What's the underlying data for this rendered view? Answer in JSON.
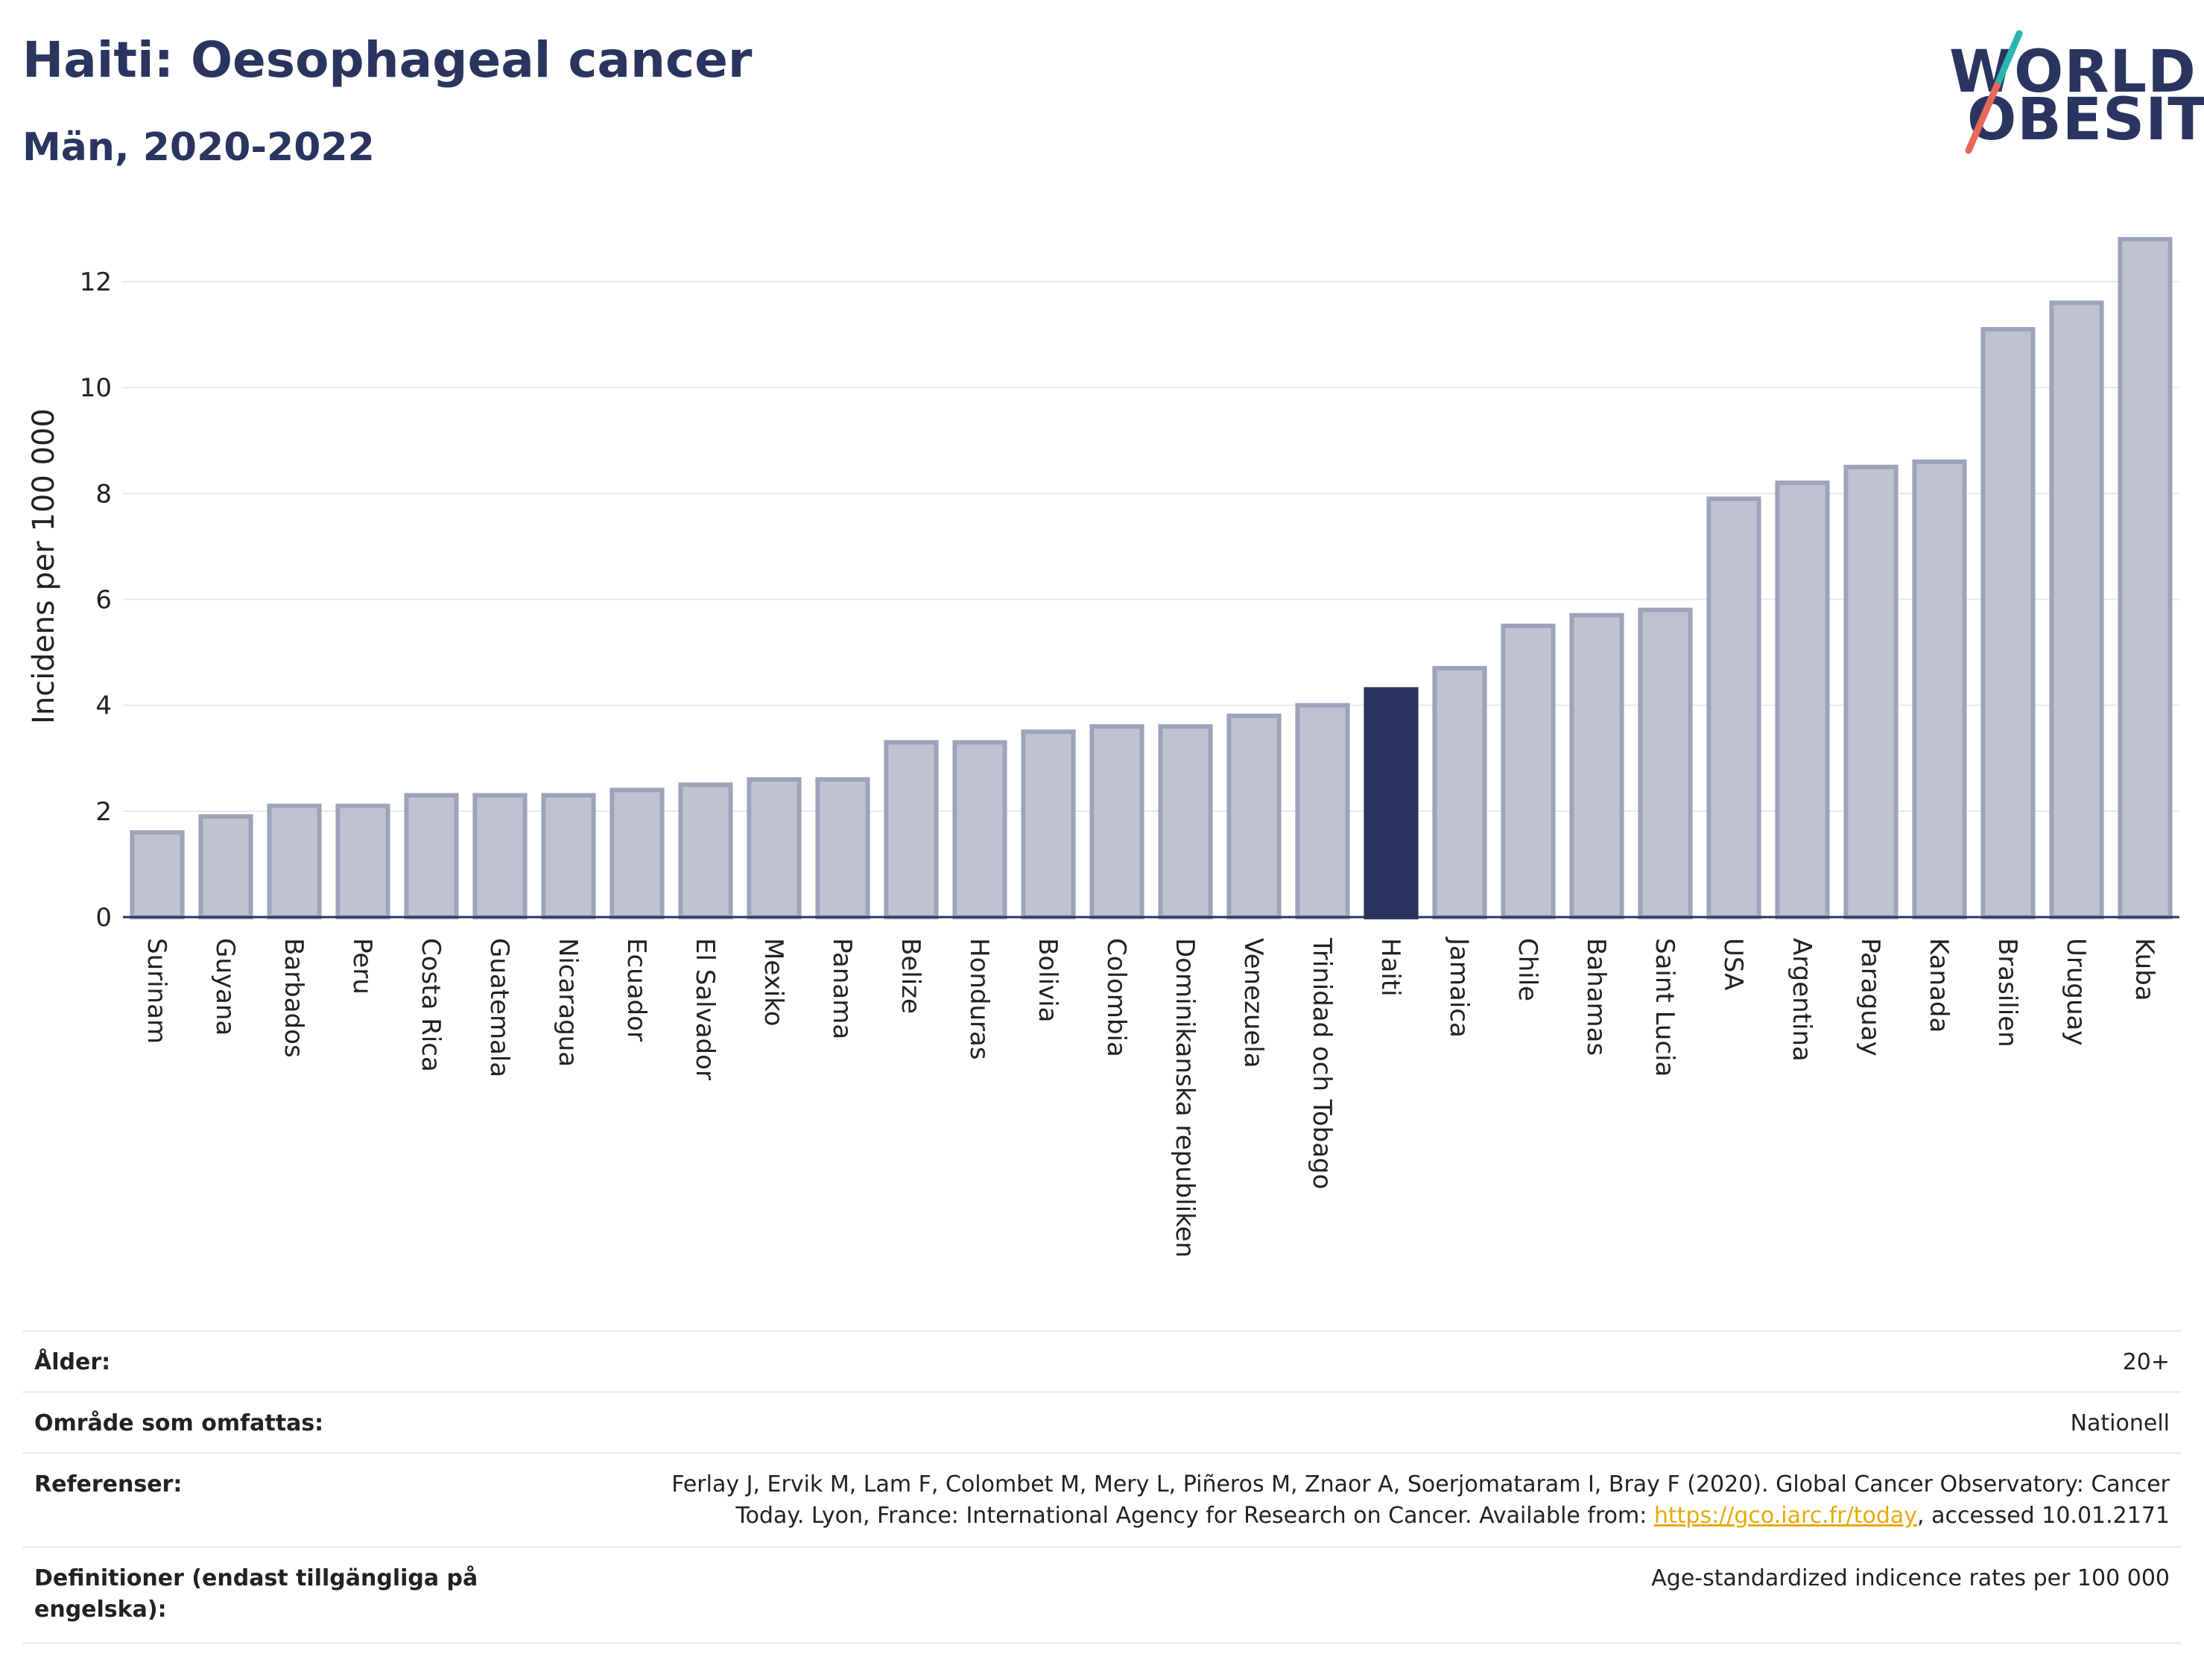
{
  "header": {
    "title": "Haiti: Oesophageal cancer",
    "subtitle": "Män, 2020-2022"
  },
  "logo": {
    "line1": "WORLD",
    "line2": "OBESITY",
    "accent_teal": "#2bb5b0",
    "accent_red": "#e8675a"
  },
  "chart_data": {
    "type": "bar",
    "ylabel": "Incidens per 100 000",
    "ylim": [
      0,
      13
    ],
    "yticks": [
      0,
      2,
      4,
      6,
      8,
      10,
      12
    ],
    "grid": true,
    "highlight": "Haiti",
    "colors": {
      "default_fill": "#bfc3d0",
      "default_stroke": "#9ea3ba",
      "highlight_fill": "#2a355f"
    },
    "categories": [
      "Surinam",
      "Guyana",
      "Barbados",
      "Peru",
      "Costa Rica",
      "Guatemala",
      "Nicaragua",
      "Ecuador",
      "El Salvador",
      "Mexiko",
      "Panama",
      "Belize",
      "Honduras",
      "Bolivia",
      "Colombia",
      "Dominikanska republiken",
      "Venezuela",
      "Trinidad och Tobago",
      "Haiti",
      "Jamaica",
      "Chile",
      "Bahamas",
      "Saint Lucia",
      "USA",
      "Argentina",
      "Paraguay",
      "Kanada",
      "Brasilien",
      "Uruguay",
      "Kuba"
    ],
    "values": [
      1.6,
      1.9,
      2.1,
      2.1,
      2.3,
      2.3,
      2.3,
      2.4,
      2.5,
      2.6,
      2.6,
      3.3,
      3.3,
      3.5,
      3.6,
      3.6,
      3.8,
      4.0,
      4.3,
      4.7,
      5.5,
      5.7,
      5.8,
      7.9,
      8.2,
      8.5,
      8.6,
      11.1,
      11.6,
      12.8
    ]
  },
  "info_table": {
    "rows": [
      {
        "key": "Ålder:",
        "value": "20+"
      },
      {
        "key": "Område som omfattas:",
        "value": "Nationell"
      },
      {
        "key": "Referenser:",
        "value_line1": "Ferlay J, Ervik M, Lam F, Colombet M, Mery L, Piñeros M, Znaor A, Soerjomataram I, Bray F (2020). Global Cancer Observatory: Cancer",
        "value_line2_pre": "Today. Lyon, France: International Agency for Research on Cancer. Available from: ",
        "link": "https://gco.iarc.fr/today",
        "value_line2_post": ", accessed 10.01.2171"
      },
      {
        "key_line1": "Definitioner (endast tillgängliga på",
        "key_line2": "engelska):",
        "value": "Age-standardized indicence rates per 100 000"
      }
    ]
  }
}
